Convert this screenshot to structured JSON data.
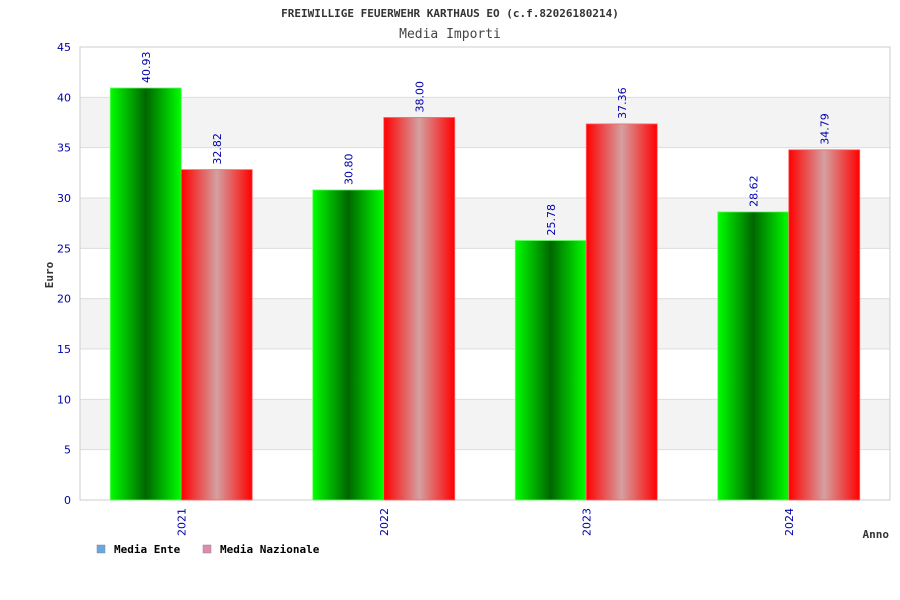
{
  "chart_data": {
    "type": "bar",
    "title": "FREIWILLIGE FEUERWEHR KARTHAUS EO (c.f.82026180214)",
    "subtitle": "Media Importi",
    "xlabel": "Anno",
    "ylabel": "Euro",
    "categories": [
      "2021",
      "2022",
      "2023",
      "2024"
    ],
    "series": [
      {
        "name": "Media Ente",
        "values": [
          40.93,
          30.8,
          25.78,
          28.62
        ],
        "labels": [
          "40.93",
          "30.80",
          "25.78",
          "28.62"
        ],
        "color": "#00cc00",
        "legend_color": "#6aa6e0"
      },
      {
        "name": "Media Nazionale",
        "values": [
          32.82,
          38.0,
          37.36,
          34.79
        ],
        "labels": [
          "32.82",
          "38.00",
          "37.36",
          "34.79"
        ],
        "color": "#ff0000",
        "legend_color": "#e08ab0"
      }
    ],
    "ylim": [
      0,
      45
    ],
    "yticks": [
      "0",
      "5",
      "10",
      "15",
      "20",
      "25",
      "30",
      "35",
      "40",
      "45"
    ],
    "grid": true,
    "legend_position": "bottom-left",
    "colors": {
      "axis_text": "#0000aa",
      "title_text": "#333333",
      "band": "#f3f3f3",
      "grid": "#dddddd"
    }
  }
}
